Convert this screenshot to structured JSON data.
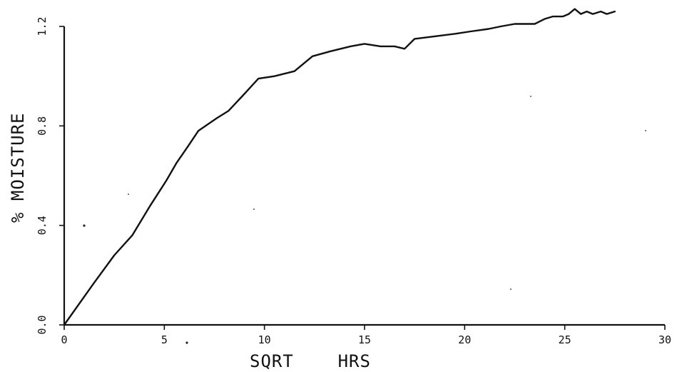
{
  "chart_data": {
    "type": "line",
    "title": "",
    "xlabel": "SQRT    HRS",
    "ylabel": "% MOISTURE",
    "xlim": [
      0,
      30
    ],
    "ylim": [
      0.0,
      1.2
    ],
    "x_ticks": [
      0,
      5,
      10,
      15,
      20,
      25,
      30
    ],
    "x_tick_labels": [
      "0",
      "5",
      "10",
      "15",
      "20",
      "25",
      "30"
    ],
    "y_ticks": [
      0.0,
      0.4,
      0.8,
      1.2
    ],
    "y_tick_labels": [
      "0.0",
      "0.4",
      "0.8",
      "1.2"
    ],
    "grid": false,
    "series": [
      {
        "x": [
          0,
          1.5,
          2.5,
          3.4,
          4.3,
          5.1,
          5.6,
          6.2,
          6.7,
          7.6,
          8.2,
          8.9,
          9.7,
          10.5,
          11.5,
          12.4,
          13.3,
          14.3,
          15.0,
          15.8,
          16.5,
          17.0,
          17.5,
          18.5,
          19.5,
          20.3,
          21.2,
          21.8,
          22.5,
          23.2,
          23.5,
          24.0,
          24.4,
          24.9,
          25.2,
          25.5,
          25.8,
          26.1,
          26.4,
          26.8,
          27.1,
          27.5
        ],
        "y": [
          0.0,
          0.17,
          0.28,
          0.36,
          0.48,
          0.58,
          0.65,
          0.72,
          0.78,
          0.83,
          0.86,
          0.92,
          0.99,
          1.0,
          1.02,
          1.08,
          1.1,
          1.12,
          1.13,
          1.12,
          1.12,
          1.11,
          1.15,
          1.16,
          1.17,
          1.18,
          1.19,
          1.2,
          1.21,
          1.21,
          1.21,
          1.23,
          1.24,
          1.24,
          1.25,
          1.27,
          1.25,
          1.26,
          1.25,
          1.26,
          1.25,
          1.26
        ]
      }
    ]
  }
}
